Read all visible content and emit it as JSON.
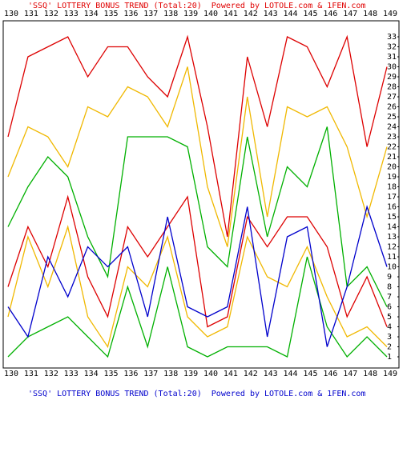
{
  "chart_data": {
    "type": "line",
    "title": "'SSQ' LOTTERY BONUS TREND (Total:20)  Powered by LOTOLE.com & 1FEN.com",
    "footer_title": "'SSQ' LOTTERY BONUS TREND (Total:20)  Powered by LOTOLE.com & 1FEN.com",
    "title_color": "#e00000",
    "footer_color": "#0000cc",
    "categories": [
      "130",
      "131",
      "132",
      "133",
      "134",
      "135",
      "136",
      "137",
      "138",
      "139",
      "140",
      "141",
      "142",
      "143",
      "144",
      "145",
      "146",
      "147",
      "148",
      "149"
    ],
    "ylim": [
      0,
      34
    ],
    "yticks": [
      1,
      2,
      3,
      4,
      5,
      6,
      7,
      8,
      9,
      10,
      11,
      12,
      13,
      14,
      15,
      16,
      17,
      18,
      19,
      20,
      21,
      22,
      23,
      24,
      25,
      26,
      27,
      28,
      29,
      30,
      31,
      32,
      33
    ],
    "grid": false,
    "series": [
      {
        "color": "#dd0000",
        "values": [
          23,
          31,
          32,
          33,
          29,
          32,
          32,
          29,
          27,
          33,
          24,
          13,
          31,
          24,
          33,
          32,
          28,
          33,
          22,
          30
        ]
      },
      {
        "color": "#f0b800",
        "values": [
          19,
          24,
          23,
          20,
          26,
          25,
          28,
          27,
          24,
          30,
          18,
          12,
          27,
          15,
          26,
          25,
          26,
          22,
          15,
          22
        ]
      },
      {
        "color": "#00b000",
        "values": [
          14,
          18,
          21,
          19,
          13,
          9,
          23,
          23,
          23,
          22,
          12,
          10,
          23,
          13,
          20,
          18,
          24,
          8,
          10,
          6
        ]
      },
      {
        "color": "#dd0000",
        "values": [
          8,
          14,
          10,
          17,
          9,
          5,
          14,
          11,
          14,
          17,
          4,
          5,
          15,
          12,
          15,
          15,
          12,
          5,
          9,
          4
        ]
      },
      {
        "color": "#f0b800",
        "values": [
          5,
          13,
          8,
          14,
          5,
          2,
          10,
          8,
          13,
          5,
          3,
          4,
          13,
          9,
          8,
          12,
          7,
          3,
          4,
          2
        ]
      },
      {
        "color": "#00b000",
        "values": [
          1,
          3,
          4,
          5,
          3,
          1,
          8,
          2,
          10,
          2,
          1,
          2,
          2,
          2,
          1,
          11,
          4,
          1,
          3,
          1
        ]
      },
      {
        "color": "#0000cc",
        "values": [
          6,
          3,
          11,
          7,
          12,
          10,
          12,
          5,
          15,
          6,
          5,
          6,
          16,
          3,
          13,
          14,
          2,
          8,
          16,
          10
        ]
      }
    ]
  }
}
